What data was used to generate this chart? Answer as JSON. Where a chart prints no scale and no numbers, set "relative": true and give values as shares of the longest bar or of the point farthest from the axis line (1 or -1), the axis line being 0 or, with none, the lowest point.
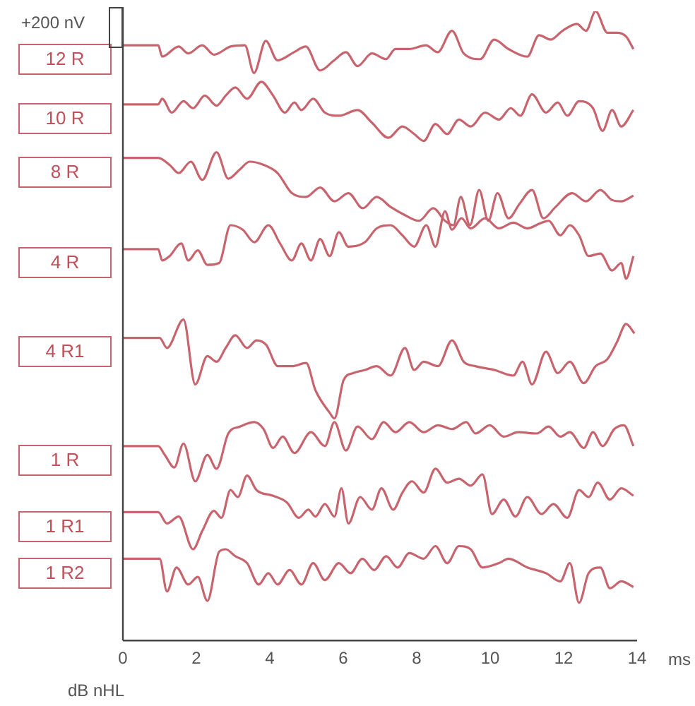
{
  "chart_data": {
    "type": "line",
    "relative": true,
    "xlabel": "ms",
    "xlim": [
      0,
      14
    ],
    "xticks": [
      0,
      2,
      4,
      6,
      8,
      10,
      12,
      14
    ],
    "grid": false,
    "legend": false,
    "marker": "none",
    "annotations": [
      "+200 nV",
      "dB nHL"
    ],
    "series": [
      {
        "name": "12 R",
        "color": "#c8646e",
        "x": [
          0,
          0.96,
          1.07,
          1.52,
          1.78,
          2.16,
          2.48,
          2.93,
          3.32,
          3.57,
          3.89,
          4.21,
          4.66,
          4.98,
          5.37,
          5.75,
          6.07,
          6.39,
          6.78,
          7.16,
          7.42,
          7.8,
          8.25,
          8.57,
          8.96,
          9.28,
          9.73,
          10.11,
          10.5,
          11.01,
          11.33,
          11.65,
          11.97,
          12.36,
          12.61,
          12.87,
          13.19,
          13.45,
          13.7,
          13.9
        ],
        "values": [
          0.946,
          0.946,
          0.928,
          0.944,
          0.933,
          0.946,
          0.931,
          0.944,
          0.946,
          0.902,
          0.953,
          0.922,
          0.935,
          0.944,
          0.906,
          0.922,
          0.935,
          0.913,
          0.933,
          0.924,
          0.94,
          0.94,
          0.946,
          0.935,
          0.969,
          0.933,
          0.924,
          0.955,
          0.94,
          0.928,
          0.962,
          0.955,
          0.969,
          0.98,
          0.969,
          1,
          0.966,
          0.966,
          0.96,
          0.94
        ]
      },
      {
        "name": "10 R",
        "color": "#c8646e",
        "x": [
          0,
          0.96,
          1.07,
          1.33,
          1.65,
          1.91,
          2.23,
          2.55,
          2.8,
          3.06,
          3.38,
          3.77,
          4.09,
          4.41,
          4.67,
          4.86,
          5.18,
          5.5,
          5.88,
          6.39,
          6.78,
          7.23,
          7.61,
          7.93,
          8.19,
          8.51,
          8.83,
          9.15,
          9.47,
          9.86,
          10.24,
          10.56,
          10.82,
          11.14,
          11.52,
          11.84,
          12.1,
          12.42,
          12.8,
          13.06,
          13.32,
          13.57,
          13.9
        ],
        "values": [
          0.852,
          0.852,
          0.861,
          0.839,
          0.857,
          0.846,
          0.866,
          0.85,
          0.866,
          0.879,
          0.861,
          0.888,
          0.866,
          0.839,
          0.855,
          0.843,
          0.861,
          0.839,
          0.834,
          0.843,
          0.823,
          0.799,
          0.817,
          0.805,
          0.794,
          0.821,
          0.805,
          0.828,
          0.817,
          0.839,
          0.828,
          0.846,
          0.834,
          0.868,
          0.839,
          0.855,
          0.834,
          0.857,
          0.846,
          0.81,
          0.843,
          0.817,
          0.843
        ]
      },
      {
        "name": "8 R",
        "color": "#c8646e",
        "x": [
          0,
          0.96,
          1.27,
          1.52,
          1.85,
          2.16,
          2.55,
          2.87,
          3.19,
          3.45,
          3.83,
          4.21,
          4.6,
          4.99,
          5.37,
          5.76,
          6.14,
          6.53,
          6.91,
          7.29,
          7.68,
          8.06,
          8.45,
          8.77,
          9.0,
          9.2,
          9.45,
          9.7,
          9.95,
          10.2,
          10.5,
          10.8,
          11.14,
          11.45,
          11.78,
          12.23,
          12.61,
          13.0,
          13.32,
          13.57,
          13.9
        ],
        "values": [
          0.767,
          0.767,
          0.756,
          0.743,
          0.761,
          0.732,
          0.776,
          0.734,
          0.749,
          0.761,
          0.756,
          0.743,
          0.711,
          0.705,
          0.72,
          0.698,
          0.711,
          0.687,
          0.705,
          0.689,
          0.676,
          0.667,
          0.687,
          0.667,
          0.66,
          0.705,
          0.66,
          0.716,
          0.667,
          0.711,
          0.671,
          0.694,
          0.716,
          0.671,
          0.689,
          0.711,
          0.698,
          0.716,
          0.7,
          0.698,
          0.707
        ]
      },
      {
        "name": "4 R",
        "color": "#c8646e",
        "x": [
          0,
          0.96,
          1.07,
          1.27,
          1.59,
          1.78,
          2.04,
          2.3,
          2.62,
          2.93,
          3.26,
          3.58,
          3.96,
          4.28,
          4.6,
          4.86,
          5.12,
          5.37,
          5.63,
          5.88,
          6.14,
          6.59,
          6.91,
          7.29,
          7.61,
          7.93,
          8.26,
          8.51,
          8.77,
          8.96,
          9.22,
          9.47,
          9.86,
          10.24,
          10.63,
          11.01,
          11.4,
          11.59,
          11.91,
          12.17,
          12.42,
          12.68,
          13.0,
          13.32,
          13.57,
          13.7,
          13.9
        ],
        "values": [
          0.622,
          0.622,
          0.604,
          0.611,
          0.631,
          0.604,
          0.62,
          0.597,
          0.6,
          0.66,
          0.653,
          0.633,
          0.66,
          0.631,
          0.604,
          0.631,
          0.604,
          0.638,
          0.611,
          0.649,
          0.626,
          0.633,
          0.655,
          0.66,
          0.644,
          0.626,
          0.66,
          0.626,
          0.682,
          0.653,
          0.671,
          0.655,
          0.671,
          0.655,
          0.664,
          0.655,
          0.664,
          0.667,
          0.644,
          0.66,
          0.644,
          0.611,
          0.615,
          0.588,
          0.6,
          0.575,
          0.611
        ]
      },
      {
        "name": "4 R1",
        "color": "#c8646e",
        "x": [
          0,
          1.0,
          1.2,
          1.65,
          1.97,
          2.3,
          2.55,
          2.8,
          3.06,
          3.38,
          3.64,
          3.9,
          4.22,
          4.6,
          4.99,
          5.24,
          5.63,
          5.76,
          6.01,
          6.27,
          6.59,
          6.91,
          7.29,
          7.68,
          7.93,
          8.19,
          8.58,
          8.96,
          9.28,
          9.6,
          10.11,
          10.63,
          10.88,
          11.14,
          11.52,
          11.84,
          12.17,
          12.55,
          12.87,
          13.19,
          13.45,
          13.7,
          13.93
        ],
        "values": [
          0.481,
          0.481,
          0.465,
          0.51,
          0.407,
          0.452,
          0.443,
          0.465,
          0.485,
          0.465,
          0.477,
          0.47,
          0.436,
          0.436,
          0.441,
          0.398,
          0.362,
          0.353,
          0.414,
          0.425,
          0.43,
          0.436,
          0.421,
          0.465,
          0.43,
          0.443,
          0.436,
          0.477,
          0.443,
          0.436,
          0.43,
          0.421,
          0.443,
          0.407,
          0.459,
          0.425,
          0.443,
          0.409,
          0.436,
          0.447,
          0.474,
          0.503,
          0.488
        ]
      },
      {
        "name": "1 R",
        "color": "#c8646e",
        "x": [
          0,
          0.96,
          1.14,
          1.4,
          1.65,
          1.97,
          2.3,
          2.55,
          2.87,
          3.19,
          3.58,
          3.83,
          4.09,
          4.35,
          4.67,
          5.12,
          5.5,
          5.76,
          6.07,
          6.39,
          6.78,
          7.1,
          7.42,
          7.8,
          8.19,
          8.58,
          8.96,
          9.35,
          9.6,
          9.99,
          10.37,
          10.76,
          11.27,
          11.59,
          11.91,
          12.17,
          12.55,
          12.8,
          13.06,
          13.38,
          13.64,
          13.9
        ],
        "values": [
          0.309,
          0.309,
          0.295,
          0.275,
          0.313,
          0.253,
          0.295,
          0.273,
          0.329,
          0.34,
          0.347,
          0.336,
          0.306,
          0.324,
          0.298,
          0.331,
          0.309,
          0.347,
          0.302,
          0.34,
          0.32,
          0.347,
          0.331,
          0.347,
          0.331,
          0.342,
          0.336,
          0.347,
          0.329,
          0.342,
          0.324,
          0.331,
          0.329,
          0.34,
          0.324,
          0.331,
          0.306,
          0.331,
          0.309,
          0.336,
          0.342,
          0.309
        ]
      },
      {
        "name": "1 R1",
        "color": "#c8646e",
        "x": [
          0,
          0.96,
          1.2,
          1.52,
          1.91,
          2.16,
          2.48,
          2.68,
          2.93,
          3.13,
          3.38,
          3.64,
          4.09,
          4.47,
          4.79,
          5.05,
          5.24,
          5.5,
          5.76,
          5.95,
          6.14,
          6.46,
          6.78,
          7.04,
          7.36,
          7.61,
          7.87,
          8.19,
          8.51,
          8.83,
          9.15,
          9.47,
          9.79,
          10.05,
          10.37,
          10.69,
          11.01,
          11.4,
          11.72,
          12.1,
          12.42,
          12.68,
          12.93,
          13.26,
          13.57,
          13.9
        ],
        "values": [
          0.204,
          0.204,
          0.186,
          0.197,
          0.145,
          0.174,
          0.206,
          0.195,
          0.239,
          0.228,
          0.262,
          0.239,
          0.23,
          0.219,
          0.195,
          0.208,
          0.197,
          0.217,
          0.197,
          0.242,
          0.186,
          0.228,
          0.208,
          0.242,
          0.208,
          0.235,
          0.253,
          0.235,
          0.273,
          0.251,
          0.257,
          0.246,
          0.264,
          0.201,
          0.224,
          0.197,
          0.228,
          0.201,
          0.217,
          0.195,
          0.239,
          0.228,
          0.251,
          0.224,
          0.242,
          0.23
        ]
      },
      {
        "name": "1 R2",
        "color": "#c8646e",
        "x": [
          0,
          1.0,
          1.2,
          1.46,
          1.78,
          2.04,
          2.3,
          2.62,
          2.8,
          3.06,
          3.38,
          3.7,
          3.96,
          4.21,
          4.54,
          4.86,
          5.18,
          5.5,
          5.88,
          6.2,
          6.52,
          6.84,
          7.17,
          7.48,
          7.8,
          8.19,
          8.51,
          8.83,
          9.15,
          9.47,
          9.79,
          10.24,
          10.5,
          11.01,
          11.52,
          11.91,
          12.17,
          12.42,
          12.68,
          13.0,
          13.26,
          13.57,
          13.9
        ],
        "values": [
          0.13,
          0.13,
          0.078,
          0.116,
          0.089,
          0.101,
          0.063,
          0.141,
          0.145,
          0.134,
          0.123,
          0.089,
          0.107,
          0.089,
          0.112,
          0.089,
          0.123,
          0.096,
          0.123,
          0.107,
          0.13,
          0.112,
          0.134,
          0.116,
          0.139,
          0.13,
          0.15,
          0.123,
          0.15,
          0.145,
          0.116,
          0.123,
          0.13,
          0.116,
          0.107,
          0.094,
          0.123,
          0.06,
          0.107,
          0.116,
          0.083,
          0.094,
          0.085
        ]
      }
    ]
  }
}
